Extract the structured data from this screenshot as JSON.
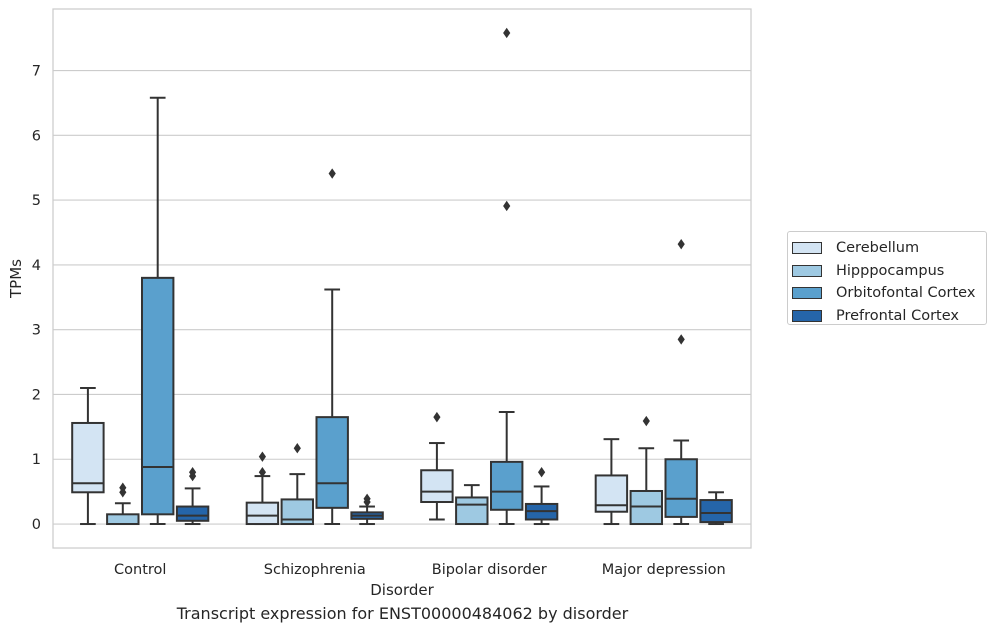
{
  "caption": "Transcript expression for ENST00000484062 by disorder",
  "colors": {
    "Cerebellum": "#d3e4f3",
    "Hipppocampus": "#9ec9e2",
    "Orbitofontal Cortex": "#5aa0cd",
    "Prefrontal Cortex": "#2565a9",
    "grid": "#cccccc",
    "box_edge": "#333333"
  },
  "chart_data": {
    "type": "box",
    "title": "",
    "xlabel": "Disorder",
    "ylabel": "TPMs",
    "ylim": [
      -0.37,
      7.95
    ],
    "yticks": [
      0,
      1,
      2,
      3,
      4,
      5,
      6,
      7
    ],
    "grid": "horizontal",
    "legend_position": "right",
    "categories": [
      "Control",
      "Schizophrenia",
      "Bipolar disorder",
      "Major depression"
    ],
    "series": [
      {
        "name": "Cerebellum",
        "boxes": [
          {
            "whislo": 0.0,
            "q1": 0.49,
            "med": 0.63,
            "q3": 1.56,
            "whishi": 2.1,
            "fliers": []
          },
          {
            "whislo": 0.0,
            "q1": 0.0,
            "med": 0.13,
            "q3": 0.33,
            "whishi": 0.74,
            "fliers": [
              0.8,
              1.04
            ]
          },
          {
            "whislo": 0.07,
            "q1": 0.34,
            "med": 0.5,
            "q3": 0.83,
            "whishi": 1.25,
            "fliers": [
              1.65
            ]
          },
          {
            "whislo": 0.0,
            "q1": 0.19,
            "med": 0.29,
            "q3": 0.75,
            "whishi": 1.31,
            "fliers": []
          }
        ]
      },
      {
        "name": "Hipppocampus",
        "boxes": [
          {
            "whislo": 0.0,
            "q1": 0.0,
            "med": 0.0,
            "q3": 0.15,
            "whishi": 0.32,
            "fliers": [
              0.49,
              0.56
            ]
          },
          {
            "whislo": 0.0,
            "q1": 0.0,
            "med": 0.07,
            "q3": 0.38,
            "whishi": 0.77,
            "fliers": [
              1.17
            ]
          },
          {
            "whislo": 0.0,
            "q1": 0.0,
            "med": 0.3,
            "q3": 0.41,
            "whishi": 0.6,
            "fliers": []
          },
          {
            "whislo": 0.0,
            "q1": 0.0,
            "med": 0.27,
            "q3": 0.51,
            "whishi": 1.17,
            "fliers": [
              1.59
            ]
          }
        ]
      },
      {
        "name": "Orbitofontal Cortex",
        "boxes": [
          {
            "whislo": 0.0,
            "q1": 0.15,
            "med": 0.88,
            "q3": 3.8,
            "whishi": 6.58,
            "fliers": []
          },
          {
            "whislo": 0.0,
            "q1": 0.25,
            "med": 0.63,
            "q3": 1.65,
            "whishi": 3.62,
            "fliers": [
              5.41
            ]
          },
          {
            "whislo": 0.0,
            "q1": 0.22,
            "med": 0.5,
            "q3": 0.96,
            "whishi": 1.73,
            "fliers": [
              4.91,
              7.58
            ]
          },
          {
            "whislo": 0.0,
            "q1": 0.11,
            "med": 0.39,
            "q3": 1.0,
            "whishi": 1.29,
            "fliers": [
              2.85,
              4.32
            ]
          }
        ]
      },
      {
        "name": "Prefrontal Cortex",
        "boxes": [
          {
            "whislo": 0.0,
            "q1": 0.05,
            "med": 0.13,
            "q3": 0.27,
            "whishi": 0.55,
            "fliers": [
              0.74,
              0.8
            ]
          },
          {
            "whislo": 0.0,
            "q1": 0.08,
            "med": 0.13,
            "q3": 0.18,
            "whishi": 0.27,
            "fliers": [
              0.34,
              0.39
            ]
          },
          {
            "whislo": 0.0,
            "q1": 0.07,
            "med": 0.2,
            "q3": 0.31,
            "whishi": 0.58,
            "fliers": [
              0.8
            ]
          },
          {
            "whislo": 0.0,
            "q1": 0.03,
            "med": 0.17,
            "q3": 0.37,
            "whishi": 0.49,
            "fliers": []
          }
        ]
      }
    ]
  }
}
